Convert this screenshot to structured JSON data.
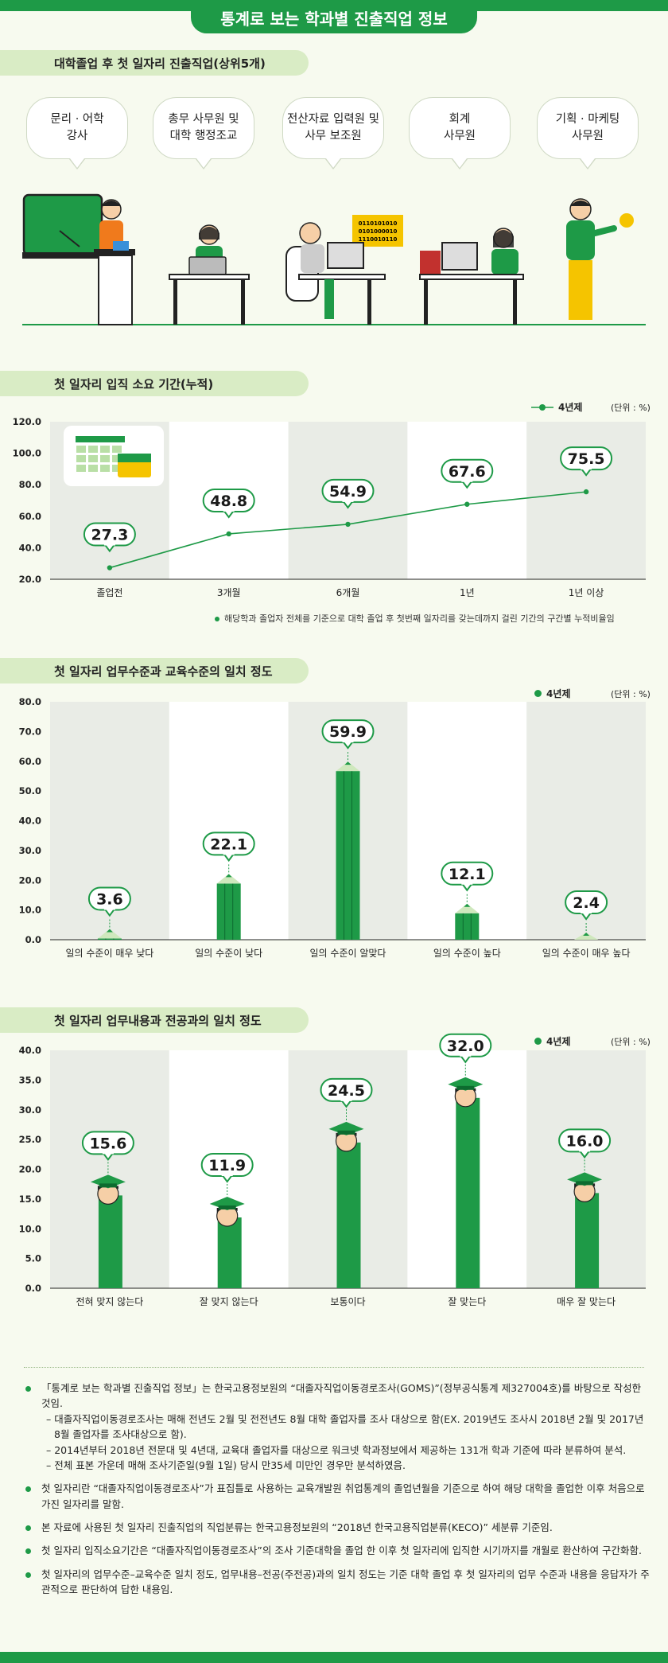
{
  "header": {
    "title": "통계로 보는 학과별 진출직업 정보"
  },
  "section1": {
    "title": "대학졸업 후 첫 일자리 진출직업(상위5개)",
    "jobs": [
      "문리 · 어학\n강사",
      "총무 사무원 및\n대학 행정조교",
      "전산자료 입력원 및\n사무 보조원",
      "회계\n사무원",
      "기획 · 마케팅\n사무원"
    ],
    "binary_lines": [
      "0110101010",
      "0101000010",
      "1110010110"
    ]
  },
  "section2": {
    "title": "첫 일자리 입직 소요 기간(누적)",
    "legend": "4년제",
    "unit": "(단위 : %)",
    "note": "해당학과 졸업자 전체를 기준으로 대학 졸업 후 첫번째 일자리를 갖는데까지 걸린 기간의 구간별 누적비율임"
  },
  "section3": {
    "title": "첫 일자리 업무수준과 교육수준의 일치 정도",
    "legend": "4년제",
    "unit": "(단위 : %)"
  },
  "section4": {
    "title": "첫 일자리 업무내용과 전공과의 일치 정도",
    "legend": "4년제",
    "unit": "(단위 : %)"
  },
  "colors": {
    "accent": "#1e9a47",
    "pill": "#d9ecc5",
    "band": "#e9ece6"
  },
  "chart_data": [
    {
      "type": "line",
      "categories": [
        "졸업전",
        "3개월",
        "6개월",
        "1년",
        "1년 이상"
      ],
      "series": [
        {
          "name": "4년제",
          "values": [
            27.3,
            48.8,
            54.9,
            67.6,
            75.5
          ]
        }
      ],
      "ylim": [
        20,
        120
      ],
      "yticks": [
        "20.0",
        "40.0",
        "60.0",
        "80.0",
        "100.0",
        "120.0"
      ],
      "labels": [
        "27.3",
        "48.8",
        "54.9",
        "67.6",
        "75.5"
      ]
    },
    {
      "type": "bar",
      "categories": [
        "일의 수준이 매우 낮다",
        "일의 수준이 낮다",
        "일의 수준이 알맞다",
        "일의 수준이 높다",
        "일의 수준이 매우 높다"
      ],
      "series": [
        {
          "name": "4년제",
          "values": [
            3.6,
            22.1,
            59.9,
            12.1,
            2.4
          ]
        }
      ],
      "ylim": [
        0,
        80
      ],
      "yticks": [
        "0.0",
        "10.0",
        "20.0",
        "30.0",
        "40.0",
        "50.0",
        "60.0",
        "70.0",
        "80.0"
      ],
      "labels": [
        "3.6",
        "22.1",
        "59.9",
        "12.1",
        "2.4"
      ]
    },
    {
      "type": "bar",
      "categories": [
        "전혀 맞지 않는다",
        "잘 맞지 않는다",
        "보통이다",
        "잘 맞는다",
        "매우 잘 맞는다"
      ],
      "series": [
        {
          "name": "4년제",
          "values": [
            15.6,
            11.9,
            24.5,
            32.0,
            16.0
          ]
        }
      ],
      "ylim": [
        0,
        40
      ],
      "yticks": [
        "0.0",
        "5.0",
        "10.0",
        "15.0",
        "20.0",
        "25.0",
        "30.0",
        "35.0",
        "40.0"
      ],
      "labels": [
        "15.6",
        "11.9",
        "24.5",
        "32.0",
        "16.0"
      ]
    }
  ],
  "notes": [
    {
      "text": "「통계로 보는 학과별 진출직업 정보」는 한국고용정보원의 “대졸자직업이동경로조사(GOMS)”(정부공식통계 제327004호)를 바탕으로 작성한 것임.",
      "subs": [
        "– 대졸자직업이동경로조사는 매해 전년도 2월 및 전전년도 8월 대학 졸업자를 조사 대상으로 함(EX. 2019년도 조사시 2018년 2월 및 2017년 8월 졸업자를 조사대상으로 함).",
        "– 2014년부터 2018년 전문대 및 4년대, 교육대 졸업자를 대상으로 워크넷 학과정보에서 제공하는 131개 학과 기준에 따라 분류하여 분석.",
        "– 전체 표본 가운데 매해 조사기준일(9월 1일) 당시 만35세 미만인 경우만 분석하였음."
      ]
    },
    {
      "text": "첫 일자리란 “대졸자직업이동경로조사”가 표집틀로 사용하는 교육개발원 취업통계의 졸업년월을 기준으로 하여 해당 대학을 졸업한 이후 처음으로 가진 일자리를 말함.",
      "subs": []
    },
    {
      "text": "본 자료에 사용된 첫 일자리 진출직업의 직업분류는 한국고용정보원의 “2018년 한국고용직업분류(KECO)” 세분류 기준임.",
      "subs": []
    },
    {
      "text": "첫 일자리 입직소요기간은 “대졸자직업이동경로조사”의 조사 기준대학을 졸업 한 이후 첫 일자리에 입직한 시기까지를 개월로 환산하여 구간화함.",
      "subs": []
    },
    {
      "text": "첫 일자리의 업무수준–교육수준 일치 정도, 업무내용–전공(주전공)과의 일치 정도는 기준 대학 졸업 후 첫 일자리의 업무 수준과 내용을 응답자가 주관적으로 판단하여 답한 내용임.",
      "subs": []
    }
  ]
}
